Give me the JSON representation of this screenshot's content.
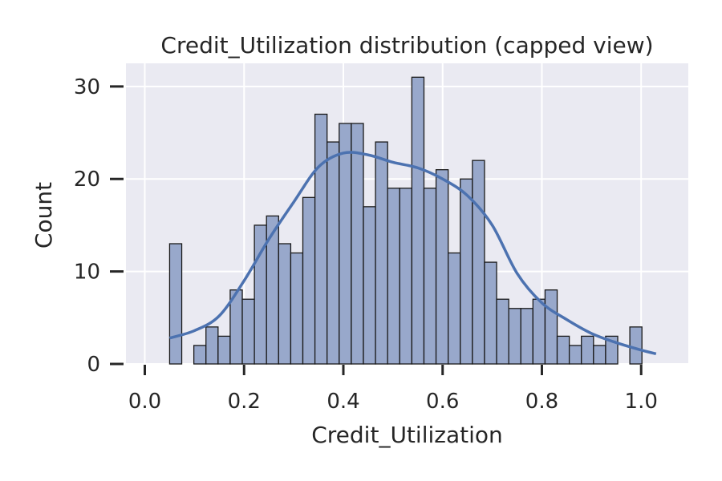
{
  "chart_data": {
    "type": "histogram",
    "title": "Credit_Utilization distribution (capped view)",
    "xlabel": "Credit_Utilization",
    "ylabel": "Count",
    "xlim": [
      -0.038,
      1.095
    ],
    "ylim": [
      0,
      32.5
    ],
    "xticks": [
      0.0,
      0.2,
      0.4,
      0.6,
      0.8,
      1.0
    ],
    "xtick_labels": [
      "0.0",
      "0.2",
      "0.4",
      "0.6",
      "0.8",
      "1.0"
    ],
    "yticks": [
      0,
      10,
      20,
      30
    ],
    "ytick_labels": [
      "0",
      "10",
      "20",
      "30"
    ],
    "bin_start": 0.05,
    "bin_width": 0.0244,
    "counts": [
      13,
      0,
      2,
      4,
      3,
      8,
      7,
      15,
      16,
      13,
      12,
      18,
      27,
      24,
      26,
      26,
      17,
      24,
      19,
      19,
      31,
      19,
      21,
      12,
      20,
      22,
      11,
      7,
      6,
      6,
      7,
      8,
      3,
      2,
      3,
      2,
      3,
      0,
      4
    ],
    "kde": {
      "x": [
        0.05,
        0.1,
        0.15,
        0.2,
        0.25,
        0.3,
        0.35,
        0.4,
        0.45,
        0.5,
        0.55,
        0.6,
        0.65,
        0.7,
        0.75,
        0.8,
        0.85,
        0.9,
        0.95,
        1.0,
        1.03
      ],
      "y": [
        2.8,
        3.6,
        5.2,
        9.0,
        13.5,
        17.5,
        21.3,
        22.8,
        22.6,
        21.8,
        21.2,
        20.0,
        18.2,
        15.0,
        9.8,
        6.6,
        4.8,
        3.3,
        2.3,
        1.5,
        1.1
      ]
    },
    "grid": true,
    "colors": {
      "background": "#eaeaf2",
      "grid": "#ffffff",
      "bar_fill": "#98a8cb",
      "bar_edge": "#1a1a1a",
      "kde_line": "#4c72b0"
    }
  }
}
